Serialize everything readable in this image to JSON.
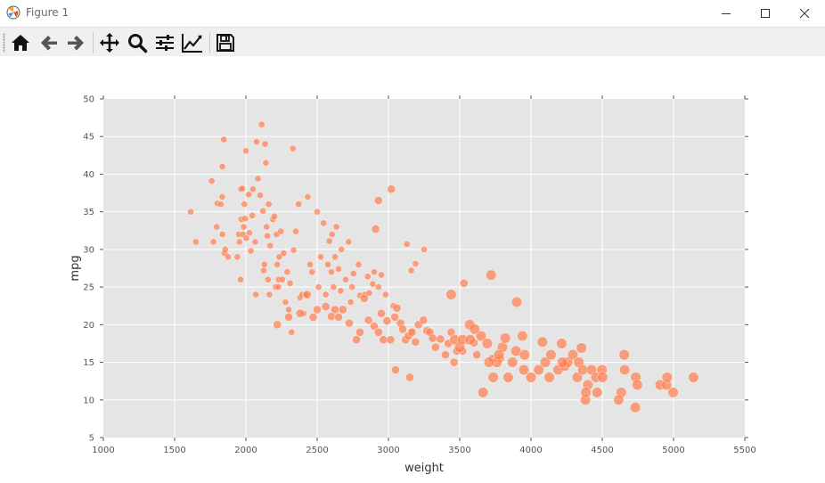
{
  "window": {
    "title": "Figure 1",
    "controls": [
      "minimize",
      "maximize",
      "close"
    ]
  },
  "toolbar": {
    "buttons": [
      {
        "name": "home-icon"
      },
      {
        "name": "back-icon"
      },
      {
        "name": "forward-icon"
      },
      {
        "name": "pan-icon"
      },
      {
        "name": "zoom-icon"
      },
      {
        "name": "configure-subplots-icon"
      },
      {
        "name": "edit-axis-icon"
      },
      {
        "name": "save-icon"
      }
    ]
  },
  "chart_data": {
    "type": "scatter",
    "xlabel": "weight",
    "ylabel": "mpg",
    "xlim": [
      1000,
      5500
    ],
    "ylim": [
      5,
      50
    ],
    "xticks": [
      1000,
      1500,
      2000,
      2500,
      3000,
      3500,
      4000,
      4500,
      5000,
      5500
    ],
    "yticks": [
      5,
      10,
      15,
      20,
      25,
      30,
      35,
      40,
      45,
      50
    ],
    "grid": true,
    "marker_color": "#ff7f50",
    "marker_size_encodes": "cylinders",
    "points": [
      [
        1613,
        35,
        4
      ],
      [
        1649,
        31,
        4
      ],
      [
        1760,
        39.1,
        4
      ],
      [
        1773,
        31,
        4
      ],
      [
        1795,
        33,
        4
      ],
      [
        1800,
        36.1,
        4
      ],
      [
        1825,
        36,
        4
      ],
      [
        1834,
        37,
        4
      ],
      [
        1835,
        41,
        4
      ],
      [
        1836,
        32,
        4
      ],
      [
        1845,
        44.6,
        4
      ],
      [
        1850,
        29.5,
        4
      ],
      [
        1855,
        30,
        4
      ],
      [
        1875,
        29,
        4
      ],
      [
        1940,
        29,
        4
      ],
      [
        1950,
        32,
        4
      ],
      [
        1955,
        31,
        4
      ],
      [
        1963,
        26,
        4
      ],
      [
        1965,
        38,
        4
      ],
      [
        1968,
        34,
        4
      ],
      [
        1975,
        38.1,
        4
      ],
      [
        1980,
        32,
        4
      ],
      [
        1985,
        33,
        4
      ],
      [
        1990,
        36,
        4
      ],
      [
        1995,
        34.1,
        4
      ],
      [
        2000,
        43.1,
        4
      ],
      [
        2003,
        31.5,
        4
      ],
      [
        2020,
        37.3,
        4
      ],
      [
        2025,
        32.2,
        4
      ],
      [
        2035,
        29.8,
        4
      ],
      [
        2045,
        34.5,
        4
      ],
      [
        2050,
        38,
        4
      ],
      [
        2065,
        31,
        4
      ],
      [
        2070,
        24,
        4
      ],
      [
        2075,
        44.3,
        4
      ],
      [
        2085,
        39.4,
        4
      ],
      [
        2100,
        37.2,
        4
      ],
      [
        2110,
        46.6,
        4
      ],
      [
        2120,
        35.1,
        4
      ],
      [
        2125,
        27.2,
        4
      ],
      [
        2130,
        28,
        4
      ],
      [
        2135,
        44,
        4
      ],
      [
        2140,
        41.5,
        4
      ],
      [
        2145,
        33,
        4
      ],
      [
        2150,
        31.8,
        4
      ],
      [
        2155,
        26,
        4
      ],
      [
        2160,
        36,
        4
      ],
      [
        2165,
        24,
        4
      ],
      [
        2170,
        30.5,
        4
      ],
      [
        2190,
        34,
        4
      ],
      [
        2200,
        34.4,
        4
      ],
      [
        2210,
        25,
        4
      ],
      [
        2215,
        32,
        4
      ],
      [
        2220,
        28,
        4
      ],
      [
        2228,
        25,
        4
      ],
      [
        2230,
        26,
        4
      ],
      [
        2234,
        29,
        4
      ],
      [
        2245,
        32.4,
        4
      ],
      [
        2255,
        26,
        4
      ],
      [
        2265,
        29.5,
        4
      ],
      [
        2278,
        23,
        4
      ],
      [
        2290,
        27,
        4
      ],
      [
        2300,
        22,
        4
      ],
      [
        2310,
        25.5,
        4
      ],
      [
        2320,
        19,
        4
      ],
      [
        2330,
        43.4,
        4
      ],
      [
        2335,
        29.9,
        4
      ],
      [
        2350,
        32.4,
        4
      ],
      [
        2370,
        36,
        4
      ],
      [
        2380,
        23.6,
        4
      ],
      [
        2395,
        24,
        4
      ],
      [
        2405,
        21.5,
        4
      ],
      [
        2420,
        24,
        4
      ],
      [
        2434,
        37,
        4
      ],
      [
        2450,
        28,
        4
      ],
      [
        2464,
        27,
        4
      ],
      [
        2500,
        35,
        4
      ],
      [
        2510,
        25,
        4
      ],
      [
        2525,
        29,
        4
      ],
      [
        2545,
        33.5,
        4
      ],
      [
        2560,
        24,
        4
      ],
      [
        2575,
        28,
        4
      ],
      [
        2585,
        31.1,
        4
      ],
      [
        2600,
        27,
        4
      ],
      [
        2605,
        32,
        4
      ],
      [
        2615,
        25,
        4
      ],
      [
        2625,
        29,
        4
      ],
      [
        2635,
        33,
        4
      ],
      [
        2650,
        27.4,
        4
      ],
      [
        2665,
        24.5,
        4
      ],
      [
        2670,
        30,
        4
      ],
      [
        2700,
        26,
        4
      ],
      [
        2720,
        31,
        4
      ],
      [
        2735,
        23,
        4
      ],
      [
        2745,
        25,
        4
      ],
      [
        2755,
        26.8,
        4
      ],
      [
        2790,
        28,
        4
      ],
      [
        2800,
        23.9,
        4
      ],
      [
        2835,
        24,
        4
      ],
      [
        2855,
        26.4,
        4
      ],
      [
        2865,
        24.2,
        4
      ],
      [
        2890,
        25.4,
        4
      ],
      [
        2900,
        27,
        4
      ],
      [
        2930,
        25,
        4
      ],
      [
        2950,
        26.6,
        4
      ],
      [
        2980,
        24,
        4
      ],
      [
        3035,
        22.5,
        4
      ],
      [
        3130,
        30.7,
        4
      ],
      [
        3160,
        27.2,
        4
      ],
      [
        3190,
        28.1,
        4
      ],
      [
        3250,
        30,
        4
      ],
      [
        3160,
        19.1,
        4
      ],
      [
        2220,
        20,
        6
      ],
      [
        2300,
        21,
        6
      ],
      [
        2380,
        21.5,
        6
      ],
      [
        2430,
        24,
        6
      ],
      [
        2472,
        21,
        6
      ],
      [
        2500,
        22,
        6
      ],
      [
        2560,
        22.4,
        6
      ],
      [
        2600,
        21.1,
        6
      ],
      [
        2625,
        22,
        6
      ],
      [
        2650,
        21,
        6
      ],
      [
        2680,
        22,
        6
      ],
      [
        2725,
        20.2,
        6
      ],
      [
        2775,
        18,
        6
      ],
      [
        2800,
        19,
        6
      ],
      [
        2830,
        23.5,
        6
      ],
      [
        2860,
        20.6,
        6
      ],
      [
        2900,
        19.8,
        6
      ],
      [
        2910,
        32.7,
        6
      ],
      [
        2930,
        19,
        6
      ],
      [
        2950,
        21.5,
        6
      ],
      [
        2965,
        18,
        6
      ],
      [
        2990,
        20.5,
        6
      ],
      [
        3015,
        18,
        6
      ],
      [
        3020,
        38,
        6
      ],
      [
        3045,
        21,
        6
      ],
      [
        3060,
        22.2,
        6
      ],
      [
        3085,
        20.2,
        6
      ],
      [
        3100,
        19.4,
        6
      ],
      [
        3120,
        18,
        6
      ],
      [
        3140,
        18.5,
        6
      ],
      [
        3165,
        19,
        6
      ],
      [
        3190,
        17.7,
        6
      ],
      [
        3210,
        20,
        6
      ],
      [
        3245,
        20.6,
        6
      ],
      [
        3270,
        19.2,
        6
      ],
      [
        3290,
        19,
        6
      ],
      [
        3310,
        18.2,
        6
      ],
      [
        3330,
        17,
        6
      ],
      [
        3365,
        18.1,
        6
      ],
      [
        3400,
        16,
        6
      ],
      [
        3420,
        17.5,
        6
      ],
      [
        3440,
        19,
        6
      ],
      [
        3460,
        15,
        6
      ],
      [
        3480,
        16.5,
        6
      ],
      [
        3520,
        16.5,
        6
      ],
      [
        3530,
        25.5,
        6
      ],
      [
        3600,
        17.6,
        6
      ],
      [
        3620,
        16,
        6
      ],
      [
        3730,
        15.5,
        6
      ],
      [
        3785,
        15.5,
        6
      ],
      [
        2930,
        36.5,
        6
      ],
      [
        3050,
        14,
        6
      ],
      [
        3150,
        13,
        6
      ],
      [
        3440,
        24,
        8
      ],
      [
        3465,
        18,
        8
      ],
      [
        3500,
        17,
        8
      ],
      [
        3520,
        18,
        8
      ],
      [
        3570,
        20,
        8
      ],
      [
        3605,
        19.4,
        8
      ],
      [
        3650,
        18.5,
        8
      ],
      [
        3664,
        11,
        8
      ],
      [
        3693,
        17.5,
        8
      ],
      [
        3720,
        26.6,
        8
      ],
      [
        3735,
        13,
        8
      ],
      [
        3761,
        15,
        8
      ],
      [
        3800,
        17,
        8
      ],
      [
        3820,
        18.2,
        8
      ],
      [
        3840,
        13,
        8
      ],
      [
        3870,
        15,
        8
      ],
      [
        3900,
        23,
        8
      ],
      [
        3940,
        18.5,
        8
      ],
      [
        3950,
        14,
        8
      ],
      [
        4000,
        13,
        8
      ],
      [
        4054,
        14,
        8
      ],
      [
        4080,
        17.7,
        8
      ],
      [
        4100,
        15,
        8
      ],
      [
        4129,
        13,
        8
      ],
      [
        4140,
        16,
        8
      ],
      [
        4190,
        14,
        8
      ],
      [
        4215,
        17.5,
        8
      ],
      [
        4237,
        14.5,
        8
      ],
      [
        4257,
        15,
        8
      ],
      [
        4294,
        16,
        8
      ],
      [
        4325,
        13,
        8
      ],
      [
        4335,
        15,
        8
      ],
      [
        4354,
        16.9,
        8
      ],
      [
        4363,
        14,
        8
      ],
      [
        4382,
        10,
        8
      ],
      [
        4399,
        12,
        8
      ],
      [
        4425,
        14,
        8
      ],
      [
        4456,
        13,
        8
      ],
      [
        4464,
        11,
        8
      ],
      [
        4498,
        14,
        8
      ],
      [
        4502,
        13,
        8
      ],
      [
        4633,
        11,
        8
      ],
      [
        4654,
        16,
        8
      ],
      [
        4735,
        13,
        8
      ],
      [
        4746,
        12,
        8
      ],
      [
        4906,
        12,
        8
      ],
      [
        4951,
        12,
        8
      ],
      [
        4955,
        13,
        8
      ],
      [
        4997,
        11,
        8
      ],
      [
        5140,
        13,
        8
      ],
      [
        3573,
        18,
        8
      ],
      [
        3706,
        15,
        8
      ],
      [
        3775,
        16,
        8
      ],
      [
        3895,
        16.5,
        8
      ],
      [
        3955,
        16,
        8
      ],
      [
        4220,
        15,
        8
      ],
      [
        4385,
        11,
        8
      ],
      [
        4615,
        10,
        8
      ],
      [
        4657,
        14,
        8
      ],
      [
        4732,
        9,
        8
      ]
    ]
  }
}
